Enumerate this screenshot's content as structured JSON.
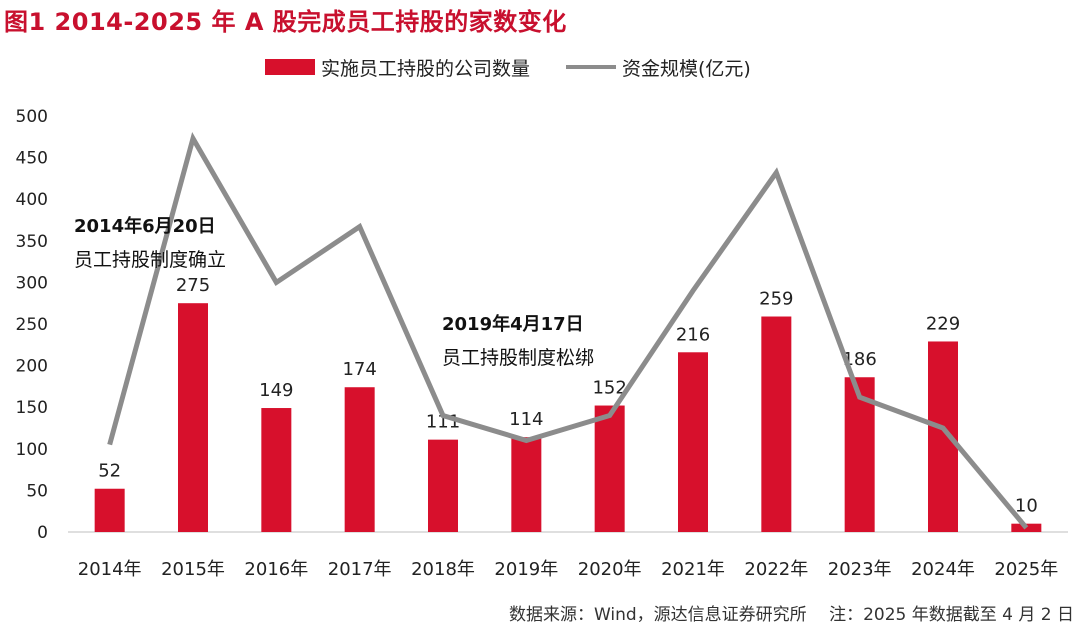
{
  "figure": {
    "title": "图1 2014-2025 年 A 股完成员工持股的家数变化",
    "source_note": "数据来源：Wind，源达信息证券研究所　 注：2025 年数据截至 4 月 2 日"
  },
  "chart_data": {
    "type": "bar",
    "categories": [
      "2014年",
      "2015年",
      "2016年",
      "2017年",
      "2018年",
      "2019年",
      "2020年",
      "2021年",
      "2022年",
      "2023年",
      "2024年",
      "2025年"
    ],
    "series": [
      {
        "name": "实施员工持股的公司数量",
        "type": "bar",
        "color": "#d7102c",
        "values": [
          52,
          275,
          149,
          174,
          111,
          114,
          152,
          216,
          259,
          186,
          229,
          10
        ]
      },
      {
        "name": "资金规模(亿元)",
        "type": "line",
        "color": "#8c8c8c",
        "values": [
          105,
          473,
          300,
          367,
          140,
          110,
          140,
          290,
          432,
          162,
          125,
          5
        ]
      }
    ],
    "ylim": [
      0,
      500
    ],
    "yticks": [
      0,
      50,
      100,
      150,
      200,
      250,
      300,
      350,
      400,
      450,
      500
    ],
    "grid": false,
    "legend": "top-center",
    "annotations": [
      {
        "date": "2014年6月20日",
        "text": "员工持股制度确立"
      },
      {
        "date": "2019年4月17日",
        "text": "员工持股制度松绑"
      }
    ]
  }
}
